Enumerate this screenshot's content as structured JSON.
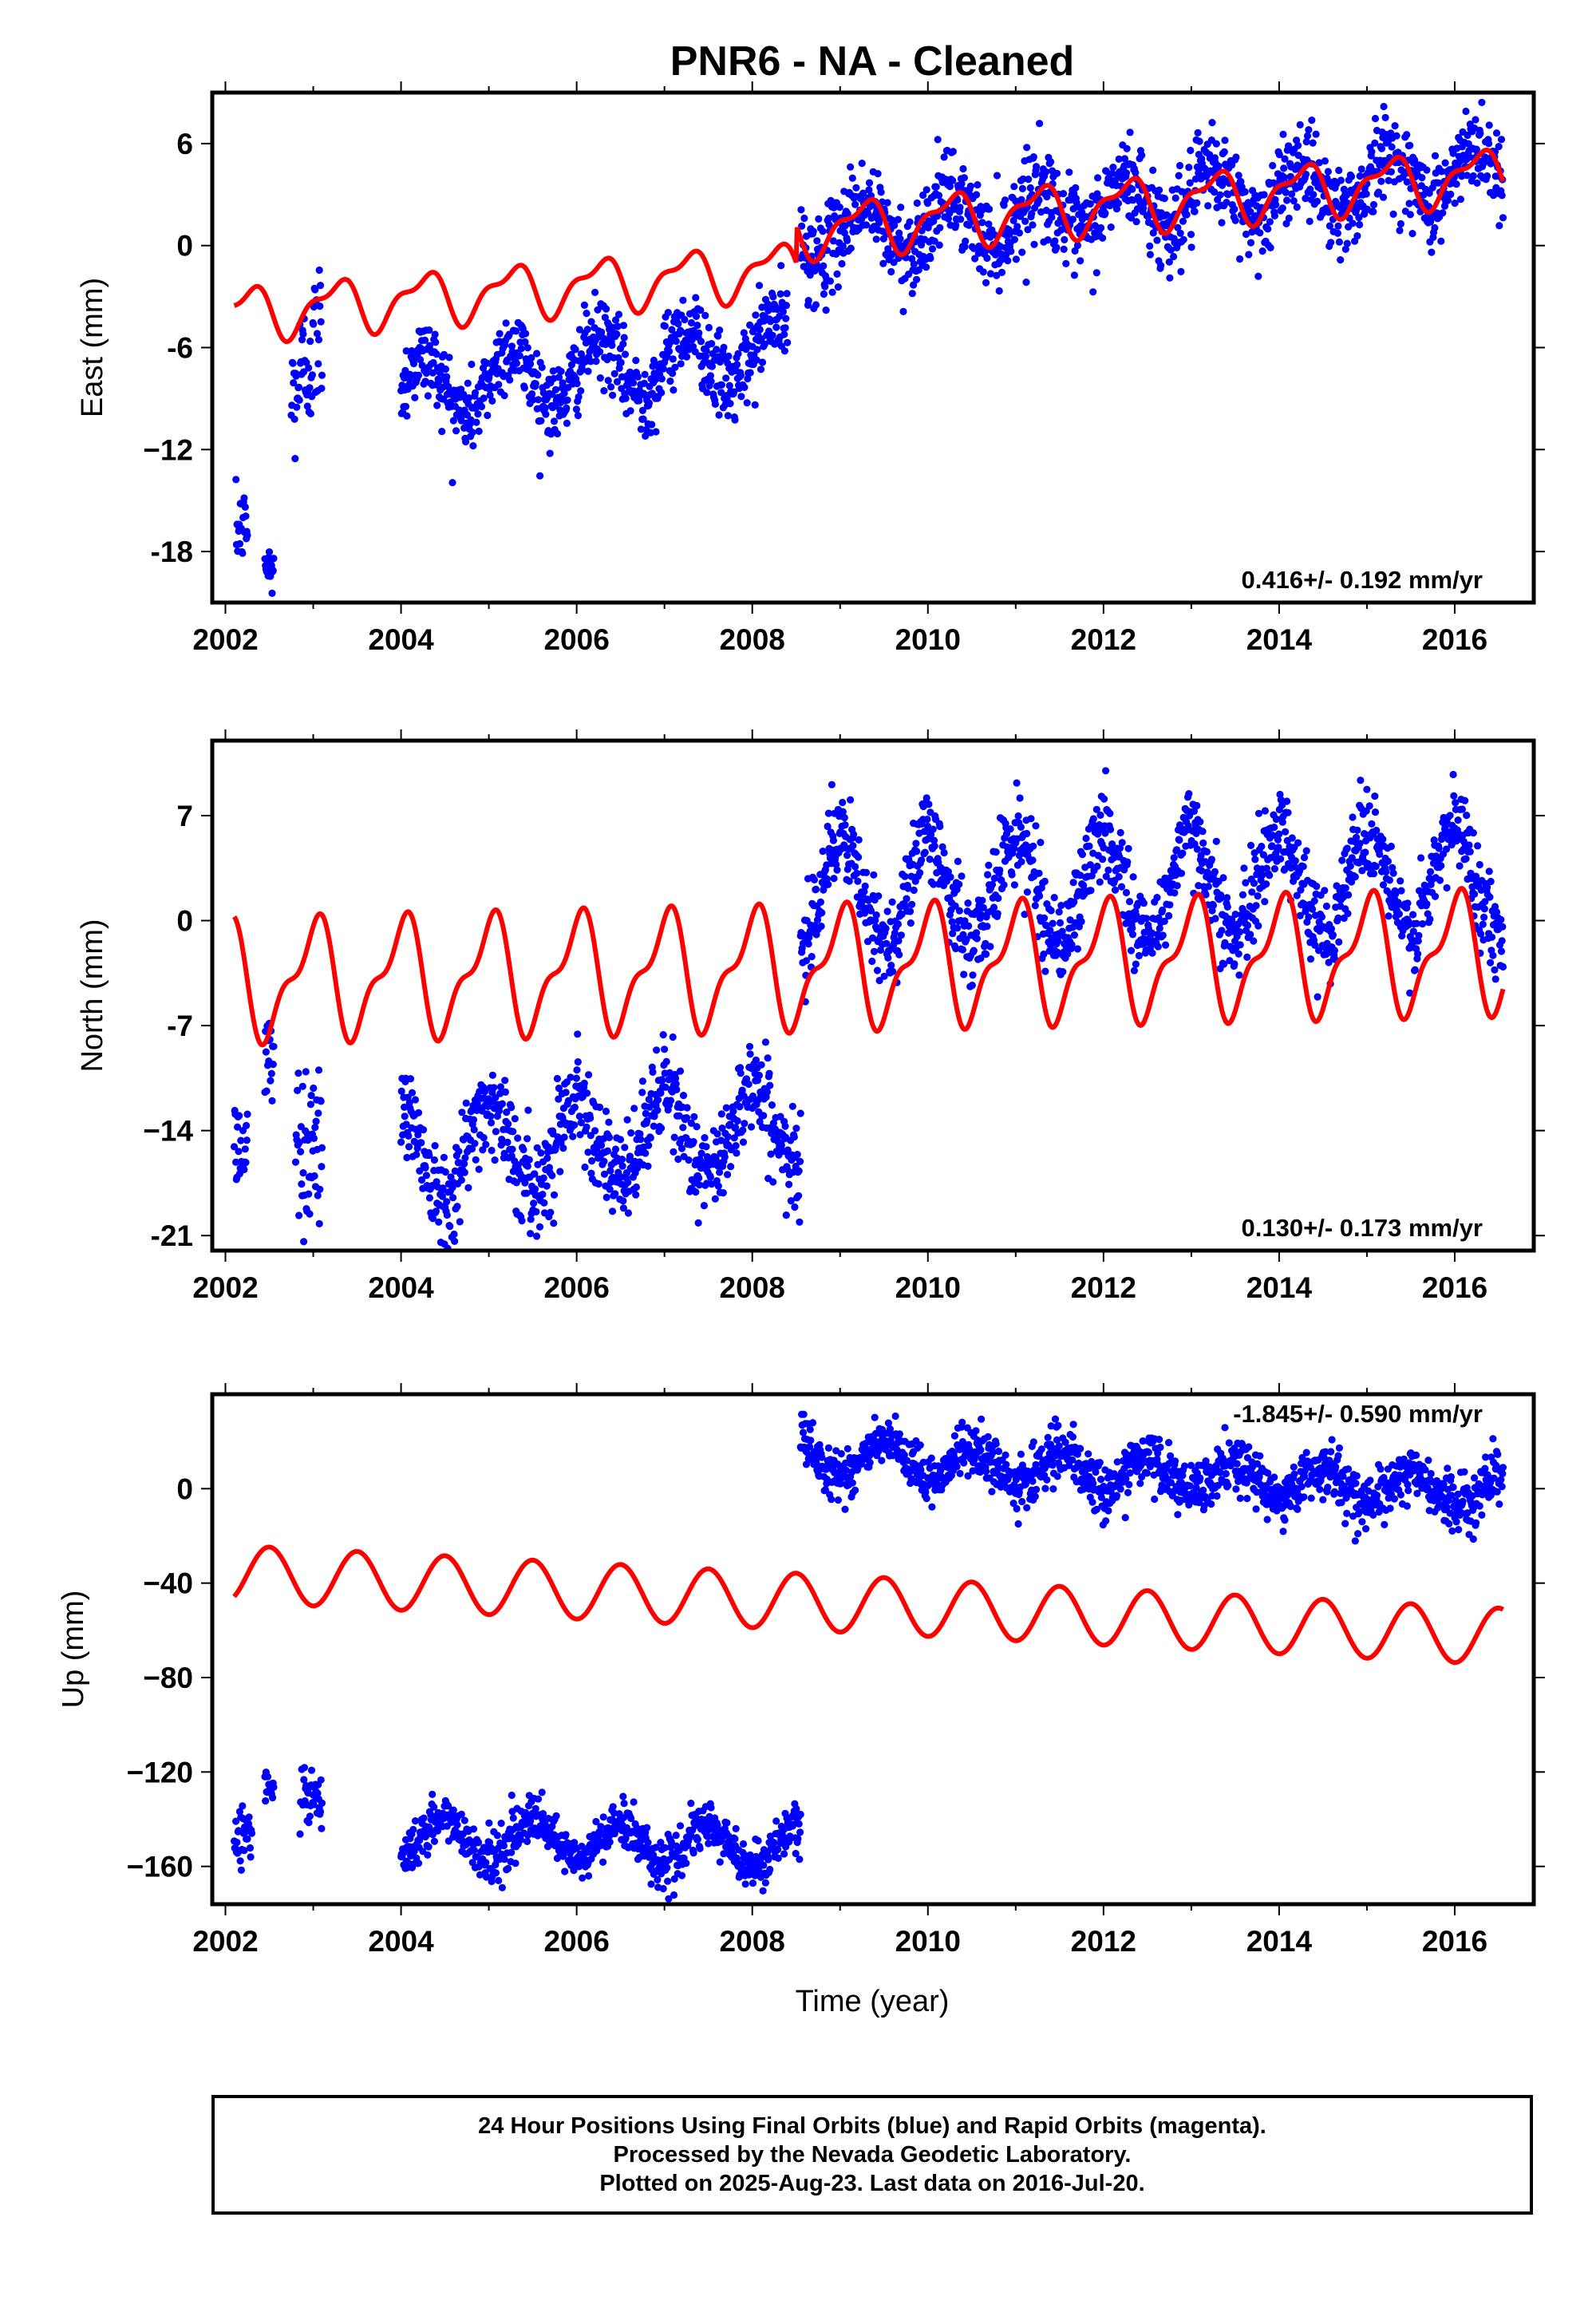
{
  "title": "PNR6  - NA - Cleaned",
  "colors": {
    "final_orbits": "#0000ff",
    "model": "#ff0000",
    "axes": "#000000"
  },
  "chart_data": [
    {
      "type": "scatter",
      "component": "east",
      "ylabel": "East (mm)",
      "xlabel": "",
      "xlim": [
        2001.85,
        2016.9
      ],
      "ylim": [
        -21,
        9
      ],
      "yticks": [
        6,
        0,
        -6,
        -12,
        -18
      ],
      "yticklabels": [
        "6",
        "0",
        "-6",
        "−12",
        "-18"
      ],
      "xticks": [
        2002,
        2004,
        2006,
        2008,
        2010,
        2012,
        2014,
        2016
      ],
      "xticklabels": [
        "2002",
        "2004",
        "2006",
        "2008",
        "2010",
        "2012",
        "2014",
        "2016"
      ],
      "rate_label": "0.416+/- 0.192 mm/yr",
      "segments": [
        {
          "start": 2002.12,
          "end": 2002.25,
          "mean": -17.5,
          "amp": 1.0,
          "sd": 1.1,
          "phase": 0.0,
          "slope": 0.0
        },
        {
          "start": 2002.45,
          "end": 2002.55,
          "mean": -19.0,
          "amp": 0.5,
          "sd": 0.8,
          "phase": 0.0,
          "slope": 0.0
        },
        {
          "start": 2002.75,
          "end": 2003.1,
          "mean": -9.0,
          "amp": 0.0,
          "sd": 2.2,
          "phase": 0.0,
          "slope": 12.0
        },
        {
          "start": 2004.0,
          "end": 2008.4,
          "mean": -8.5,
          "amp": 1.8,
          "sd": 1.2,
          "phase": 0.0,
          "slope": 0.55
        },
        {
          "start": 2008.55,
          "end": 2016.55,
          "mean": 0.6,
          "amp": 1.5,
          "sd": 1.3,
          "phase": 0.0,
          "slope": 0.48
        }
      ],
      "model": {
        "start": 2002.1,
        "end": 2016.55,
        "offset": -4.0,
        "trend": 0.416,
        "t0": 2002.1,
        "a1": 1.4,
        "p1": 0.0,
        "a2": 0.6,
        "p2": 0.2,
        "steps": [
          {
            "t": 2008.5,
            "size": 2.2
          }
        ]
      }
    },
    {
      "type": "scatter",
      "component": "north",
      "ylabel": "North (mm)",
      "xlabel": "",
      "xlim": [
        2001.85,
        2016.9
      ],
      "ylim": [
        -22,
        12
      ],
      "yticks": [
        7,
        0,
        -7,
        -14,
        -21
      ],
      "yticklabels": [
        "7",
        "0",
        "-7",
        "−14",
        "-21"
      ],
      "xticks": [
        2002,
        2004,
        2006,
        2008,
        2010,
        2012,
        2014,
        2016
      ],
      "xticklabels": [
        "2002",
        "2004",
        "2006",
        "2008",
        "2010",
        "2012",
        "2014",
        "2016"
      ],
      "rate_label": "0.130+/- 0.173 mm/yr",
      "segments": [
        {
          "start": 2002.1,
          "end": 2002.25,
          "mean": -15.0,
          "amp": 0.0,
          "sd": 1.8,
          "phase": 0.0,
          "slope": 0.0
        },
        {
          "start": 2002.45,
          "end": 2002.55,
          "mean": -9.5,
          "amp": 0.0,
          "sd": 1.6,
          "phase": 0.0,
          "slope": 0.0
        },
        {
          "start": 2002.8,
          "end": 2003.1,
          "mean": -15.0,
          "amp": 0.0,
          "sd": 3.0,
          "phase": 0.0,
          "slope": 0.0
        },
        {
          "start": 2004.0,
          "end": 2008.55,
          "mean": -15.5,
          "amp": 3.0,
          "sd": 1.6,
          "phase": 0.25,
          "slope": 0.4
        },
        {
          "start": 2008.55,
          "end": 2016.55,
          "mean": 1.8,
          "amp": 3.5,
          "sd": 1.5,
          "phase": 0.25,
          "slope": 0.12
        }
      ],
      "model": {
        "start": 2002.1,
        "end": 2016.55,
        "offset": -4.0,
        "trend": 0.13,
        "t0": 2002.1,
        "a1": 3.5,
        "p1": 0.25,
        "a2": 1.5,
        "p2": 0.0,
        "steps": []
      }
    },
    {
      "type": "scatter",
      "component": "up",
      "ylabel": "Up (mm)",
      "xlabel": "Time (year)",
      "xlim": [
        2001.85,
        2016.9
      ],
      "ylim": [
        -176,
        40
      ],
      "yticks": [
        0,
        -40,
        -80,
        -120,
        -160
      ],
      "yticklabels": [
        "0",
        "−40",
        "−80",
        "−120",
        "−160"
      ],
      "xticks": [
        2002,
        2004,
        2006,
        2008,
        2010,
        2012,
        2014,
        2016
      ],
      "xticklabels": [
        "2002",
        "2004",
        "2006",
        "2008",
        "2010",
        "2012",
        "2014",
        "2016"
      ],
      "rate_label": "-1.845+/- 0.590 mm/yr",
      "segments": [
        {
          "start": 2002.1,
          "end": 2002.3,
          "mean": -146.0,
          "amp": 0.0,
          "sd": 6.0,
          "phase": 0.0,
          "slope": 0.0
        },
        {
          "start": 2002.45,
          "end": 2002.55,
          "mean": -126.0,
          "amp": 0.0,
          "sd": 4.0,
          "phase": 0.0,
          "slope": 0.0
        },
        {
          "start": 2002.85,
          "end": 2003.1,
          "mean": -130.0,
          "amp": 0.0,
          "sd": 7.0,
          "phase": 0.0,
          "slope": 0.0
        },
        {
          "start": 2004.0,
          "end": 2008.55,
          "mean": -147.0,
          "amp": 8.0,
          "sd": 5.0,
          "phase": 0.75,
          "slope": -1.2
        },
        {
          "start": 2008.55,
          "end": 2016.55,
          "mean": 14.0,
          "amp": 7.0,
          "sd": 5.5,
          "phase": 0.75,
          "slope": -2.0
        }
      ],
      "model": {
        "start": 2002.1,
        "end": 2016.55,
        "offset": -36.0,
        "trend": -1.845,
        "t0": 2002.1,
        "a1": 12.0,
        "p1": 0.75,
        "a2": 0.0,
        "p2": 0.0,
        "steps": []
      }
    }
  ],
  "footer": {
    "line1": "24 Hour Positions Using Final Orbits (blue) and Rapid Orbits (magenta).",
    "line2": "Processed by the Nevada Geodetic Laboratory.",
    "line3": "Plotted on 2025-Aug-23. Last data on 2016-Jul-20."
  }
}
